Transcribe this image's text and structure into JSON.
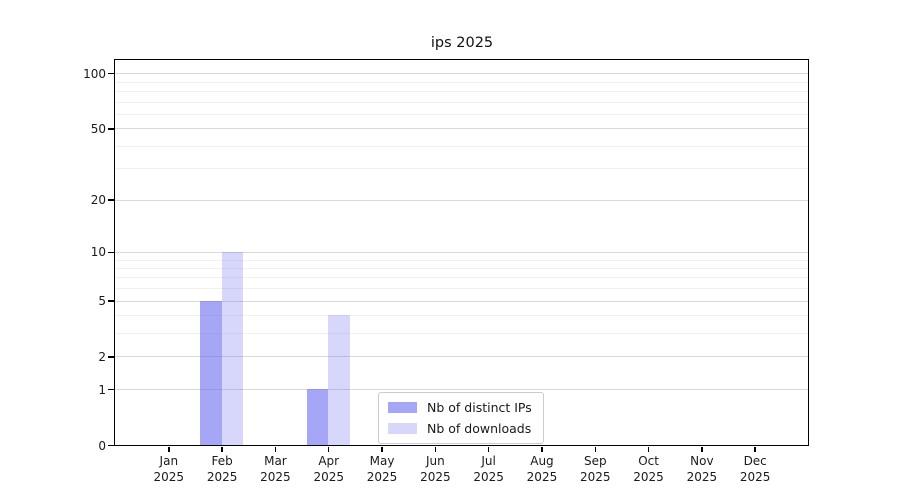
{
  "chart_data": {
    "type": "bar",
    "title": "ips 2025",
    "categories": [
      "Jan",
      "Feb",
      "Mar",
      "Apr",
      "May",
      "Jun",
      "Jul",
      "Aug",
      "Sep",
      "Oct",
      "Nov",
      "Dec"
    ],
    "category_year": "2025",
    "series": [
      {
        "name": "Nb of distinct IPs",
        "color": "rgba(101,101,240,0.58)",
        "values": [
          0,
          5,
          0,
          1,
          0,
          0,
          0,
          0,
          0,
          0,
          0,
          0
        ]
      },
      {
        "name": "Nb of downloads",
        "color": "rgba(101,101,240,0.26)",
        "values": [
          0,
          10,
          0,
          4,
          0,
          0,
          0,
          0,
          0,
          0,
          0,
          0
        ]
      }
    ],
    "xlabel": "",
    "ylabel": "",
    "yscale": "log1p",
    "yticks": [
      0,
      1,
      2,
      5,
      10,
      20,
      50,
      100
    ],
    "minor_yticks": [
      3,
      4,
      6,
      7,
      8,
      9,
      30,
      40,
      60,
      70,
      80,
      90
    ],
    "ylim": [
      0,
      118
    ],
    "grid": "on",
    "legend_position": "lower center",
    "frame_color": "#000000",
    "major_grid_color": "#d9d9d9",
    "minor_grid_color": "#f0f0f0"
  }
}
